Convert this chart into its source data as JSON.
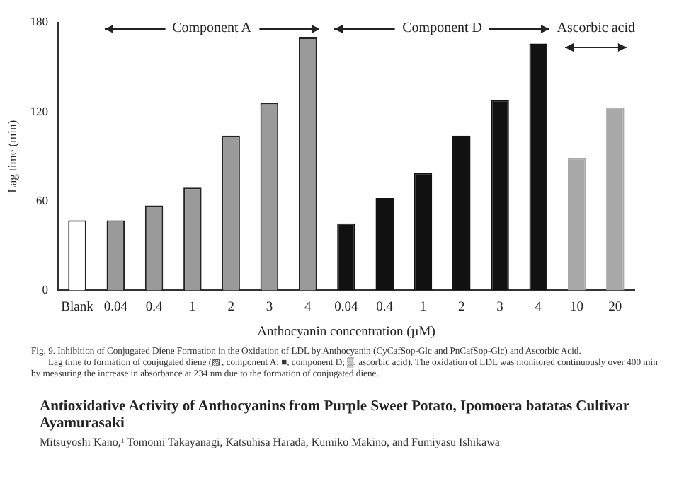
{
  "chart_data": {
    "type": "bar",
    "xlabel": "Anthocyanin concentration (µM)",
    "ylabel": "Lag time (min)",
    "categories": [
      "Blank",
      "0.04",
      "0.4",
      "1",
      "2",
      "3",
      "4",
      "0.04",
      "0.4",
      "1",
      "2",
      "3",
      "4",
      "10",
      "20"
    ],
    "values": [
      47,
      47,
      57,
      69,
      104,
      126,
      170,
      45,
      62,
      79,
      104,
      128,
      166,
      89,
      123
    ],
    "colors": [
      "#ffffff",
      "#9a9a9a",
      "#9a9a9a",
      "#9a9a9a",
      "#9a9a9a",
      "#9a9a9a",
      "#9a9a9a",
      "#111111",
      "#111111",
      "#111111",
      "#111111",
      "#111111",
      "#111111",
      "#a8a8a8",
      "#a8a8a8"
    ],
    "ylim": [
      0,
      180
    ],
    "yticks": [
      0,
      60,
      120,
      180
    ],
    "grid": false,
    "legend": false,
    "annotations": [
      "Component A",
      "Component D",
      "Ascorbic acid",
      "Fig. 9.  Inhibition of Conjugated Diene Formation in the Oxidation of LDL by Anthocyanin (CyCafSop-Glc and PnCafSop-Glc) and Ascorbic Acid.",
      "Lag time to formation of conjugated diene (▨, component A; ■, component D; ▒, ascorbic acid). The oxidation of LDL was monitored continuously over 400 min by measuring the increase in absorbance at 234 nm due to the formation of conjugated diene.",
      "Antioxidative Activity of Anthocyanins from Purple Sweet Potato, Ipomoera batatas Cultivar Ayamurasaki",
      "Mitsuyoshi Kano,¹ Tomomi Takayanagi, Katsuhisa Harada, Kumiko Makino, and Fumiyasu Ishikawa"
    ]
  }
}
